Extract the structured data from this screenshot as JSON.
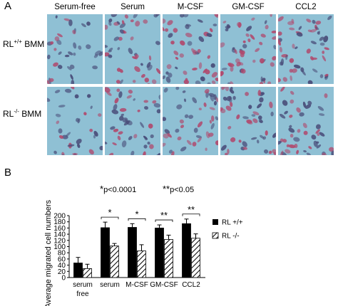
{
  "panel_a": {
    "label": "A",
    "columns": [
      "Serum-free",
      "Serum",
      "M-CSF",
      "GM-CSF",
      "CCL2"
    ],
    "rows": [
      {
        "prefix": "RL",
        "sup": "+/+",
        "suffix": " BMM"
      },
      {
        "prefix": "RL",
        "sup": "-/-",
        "suffix": " BMM"
      }
    ],
    "cell_density": [
      [
        0.35,
        0.7,
        0.75,
        0.85,
        0.8
      ],
      [
        0.3,
        0.65,
        0.6,
        0.75,
        0.7
      ]
    ],
    "colors": {
      "background": "#8fc0d4",
      "nucleus": "#4a4e7a",
      "cell": "#b04a6e"
    }
  },
  "panel_b": {
    "label": "B",
    "significance_notes": [
      {
        "stars": "*",
        "text": "p<0.0001"
      },
      {
        "stars": "**",
        "text": "p<0.05"
      }
    ]
  },
  "chart_data": {
    "type": "bar",
    "categories": [
      "serum free",
      "serum",
      "M-CSF",
      "GM-CSF",
      "CCL2"
    ],
    "ylabel": "Average  migrated cell numbers",
    "ylim": [
      0,
      200
    ],
    "yticks": [
      0,
      20,
      40,
      60,
      80,
      100,
      120,
      140,
      160,
      180,
      200
    ],
    "series": [
      {
        "name": "RL +/+",
        "values": [
          47,
          161,
          162,
          160,
          174
        ],
        "errors": [
          18,
          18,
          12,
          10,
          15
        ],
        "fill": "#000000"
      },
      {
        "name": "RL -/-",
        "values": [
          29,
          102,
          86,
          123,
          127
        ],
        "errors": [
          14,
          8,
          20,
          14,
          14
        ],
        "fill": "hatched"
      }
    ],
    "legend_position": "right",
    "brackets": [
      {
        "category": "serum",
        "stars": "*"
      },
      {
        "category": "M-CSF",
        "stars": "*"
      },
      {
        "category": "GM-CSF",
        "stars": "**"
      },
      {
        "category": "CCL2",
        "stars": "**"
      }
    ]
  }
}
